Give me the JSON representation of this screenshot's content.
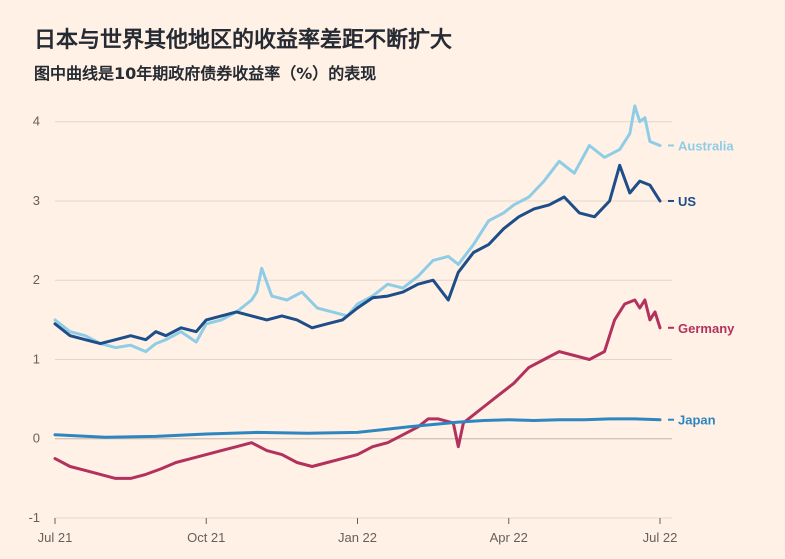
{
  "title": "日本与世界其他地区的收益率差距不断扩大",
  "subtitle": "图中曲线是10年期政府债券收益率（%）的表现",
  "chart_data": {
    "type": "line",
    "ylim": [
      -1,
      4.4
    ],
    "yticks": [
      -1,
      0,
      1,
      2,
      3,
      4
    ],
    "ytick_labels": [
      "-1",
      "0",
      "1",
      "2",
      "3",
      "4"
    ],
    "xlim": [
      0,
      12
    ],
    "xticks": [
      0,
      3,
      6,
      9,
      12
    ],
    "xtick_labels": [
      "Jul 21",
      "Oct 21",
      "Jan 22",
      "Apr 22",
      "Jul 22"
    ],
    "grid": true,
    "series": [
      {
        "name": "Australia",
        "color": "#8FCDE6",
        "x": [
          0,
          0.3,
          0.6,
          0.9,
          1.2,
          1.5,
          1.8,
          2.0,
          2.2,
          2.5,
          2.8,
          3.0,
          3.3,
          3.6,
          3.9,
          4.0,
          4.1,
          4.3,
          4.6,
          4.9,
          5.2,
          5.5,
          5.8,
          6.0,
          6.3,
          6.6,
          6.9,
          7.2,
          7.5,
          7.8,
          8.0,
          8.3,
          8.6,
          8.9,
          9.1,
          9.4,
          9.7,
          10.0,
          10.3,
          10.6,
          10.9,
          11.2,
          11.4,
          11.5,
          11.6,
          11.7,
          11.8,
          12.0
        ],
        "y": [
          1.5,
          1.35,
          1.3,
          1.2,
          1.15,
          1.18,
          1.1,
          1.2,
          1.25,
          1.35,
          1.22,
          1.45,
          1.5,
          1.6,
          1.75,
          1.85,
          2.15,
          1.8,
          1.75,
          1.85,
          1.65,
          1.6,
          1.55,
          1.7,
          1.8,
          1.95,
          1.9,
          2.05,
          2.25,
          2.3,
          2.2,
          2.45,
          2.75,
          2.85,
          2.95,
          3.05,
          3.25,
          3.5,
          3.35,
          3.7,
          3.55,
          3.65,
          3.85,
          4.2,
          4.0,
          4.05,
          3.75,
          3.7
        ]
      },
      {
        "name": "US",
        "color": "#1D4E89",
        "x": [
          0,
          0.3,
          0.6,
          0.9,
          1.2,
          1.5,
          1.8,
          2.0,
          2.2,
          2.5,
          2.8,
          3.0,
          3.3,
          3.6,
          3.9,
          4.2,
          4.5,
          4.8,
          5.1,
          5.4,
          5.7,
          6.0,
          6.3,
          6.6,
          6.9,
          7.2,
          7.5,
          7.8,
          8.0,
          8.3,
          8.6,
          8.9,
          9.2,
          9.5,
          9.8,
          10.1,
          10.4,
          10.7,
          11.0,
          11.2,
          11.4,
          11.6,
          11.8,
          12.0
        ],
        "y": [
          1.45,
          1.3,
          1.25,
          1.2,
          1.25,
          1.3,
          1.25,
          1.35,
          1.3,
          1.4,
          1.35,
          1.5,
          1.55,
          1.6,
          1.55,
          1.5,
          1.55,
          1.5,
          1.4,
          1.45,
          1.5,
          1.65,
          1.78,
          1.8,
          1.85,
          1.95,
          2.0,
          1.75,
          2.1,
          2.35,
          2.45,
          2.65,
          2.8,
          2.9,
          2.95,
          3.05,
          2.85,
          2.8,
          3.0,
          3.45,
          3.1,
          3.25,
          3.2,
          3.0
        ]
      },
      {
        "name": "Germany",
        "color": "#B2315D",
        "x": [
          0,
          0.3,
          0.6,
          0.9,
          1.2,
          1.5,
          1.8,
          2.1,
          2.4,
          2.7,
          3.0,
          3.3,
          3.6,
          3.9,
          4.2,
          4.5,
          4.8,
          5.1,
          5.4,
          5.7,
          6.0,
          6.3,
          6.6,
          6.9,
          7.2,
          7.4,
          7.6,
          7.9,
          8.0,
          8.1,
          8.2,
          8.5,
          8.8,
          9.1,
          9.4,
          9.7,
          10.0,
          10.3,
          10.6,
          10.9,
          11.1,
          11.3,
          11.5,
          11.6,
          11.7,
          11.8,
          11.9,
          12.0
        ],
        "y": [
          -0.25,
          -0.35,
          -0.4,
          -0.45,
          -0.5,
          -0.5,
          -0.45,
          -0.38,
          -0.3,
          -0.25,
          -0.2,
          -0.15,
          -0.1,
          -0.05,
          -0.15,
          -0.2,
          -0.3,
          -0.35,
          -0.3,
          -0.25,
          -0.2,
          -0.1,
          -0.05,
          0.05,
          0.15,
          0.25,
          0.25,
          0.2,
          -0.1,
          0.2,
          0.25,
          0.4,
          0.55,
          0.7,
          0.9,
          1.0,
          1.1,
          1.05,
          1.0,
          1.1,
          1.5,
          1.7,
          1.75,
          1.65,
          1.75,
          1.5,
          1.6,
          1.4
        ]
      },
      {
        "name": "Japan",
        "color": "#2E86C1",
        "x": [
          0,
          1,
          2,
          3,
          4,
          5,
          6,
          7,
          7.5,
          8,
          8.5,
          9,
          9.5,
          10,
          10.5,
          11,
          11.5,
          12
        ],
        "y": [
          0.05,
          0.02,
          0.03,
          0.06,
          0.08,
          0.07,
          0.08,
          0.15,
          0.18,
          0.21,
          0.23,
          0.24,
          0.23,
          0.24,
          0.24,
          0.25,
          0.25,
          0.24
        ]
      }
    ]
  }
}
